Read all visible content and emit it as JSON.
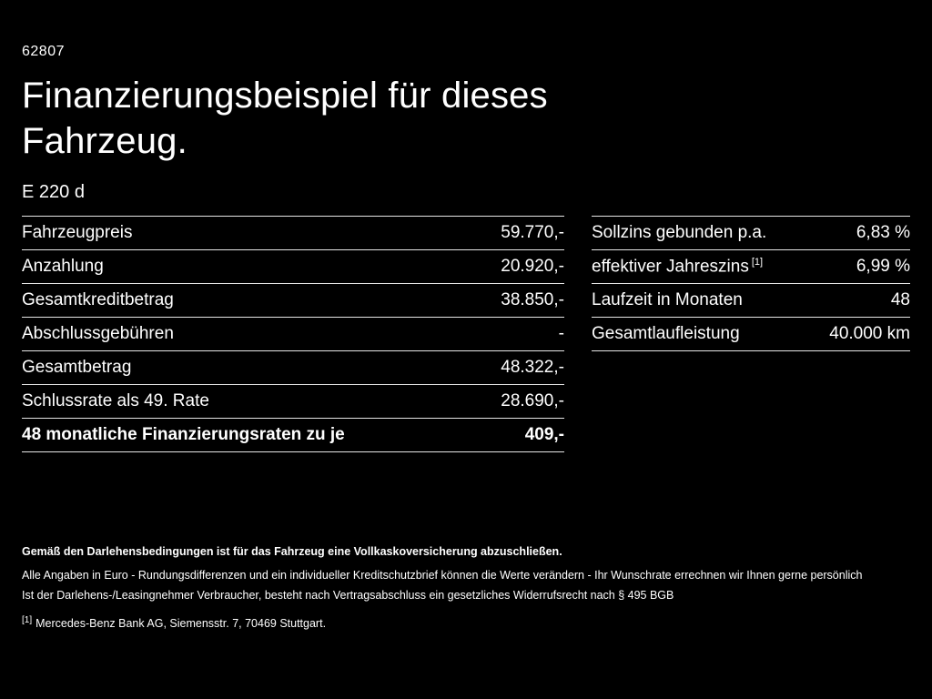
{
  "page": {
    "code": "62807",
    "title_line1": "Finanzierungsbeispiel für dieses",
    "title_line2": "Fahrzeug.",
    "model": "E 220 d"
  },
  "finance_table": {
    "rows": [
      {
        "label": "Fahrzeugpreis",
        "value": "59.770,-"
      },
      {
        "label": "Anzahlung",
        "value": "20.920,-"
      },
      {
        "label": "Gesamtkreditbetrag",
        "value": "38.850,-"
      },
      {
        "label": "Abschlussgebühren",
        "value": "-"
      },
      {
        "label": "Gesamtbetrag",
        "value": "48.322,-"
      },
      {
        "label": "Schlussrate als 49. Rate",
        "value": "28.690,-"
      },
      {
        "label": "48 monatliche Finanzierungsraten zu je",
        "value": "409,-"
      }
    ]
  },
  "conditions_table": {
    "rows": [
      {
        "label": "Sollzins gebunden p.a.",
        "value": "6,83 %"
      },
      {
        "label": "effektiver Jahreszins",
        "sup": "[1]",
        "value": "6,99 %"
      },
      {
        "label": "Laufzeit in Monaten",
        "value": "48"
      },
      {
        "label": "Gesamtlaufleistung",
        "value": "40.000 km"
      }
    ]
  },
  "footnotes": {
    "insurance_bold": "Gemäß den Darlehensbedingungen ist für das Fahrzeug eine Vollkaskoversicherung abzuschließen.",
    "line2": "Alle Angaben in Euro - Rundungsdifferenzen und ein individueller Kreditschutzbrief können die Werte verändern - Ihr Wunschrate errechnen wir Ihnen gerne persönlich",
    "line3": "Ist der Darlehens-/Leasingnehmer Verbraucher, besteht nach Vertragsabschluss ein gesetzliches Widerrufsrecht nach § 495 BGB",
    "ref_sup": "[1]",
    "ref_text": "Mercedes-Benz Bank AG, Siemensstr. 7, 70469 Stuttgart."
  },
  "colors": {
    "background": "#000000",
    "text": "#ffffff",
    "divider": "#e6e6e6"
  }
}
